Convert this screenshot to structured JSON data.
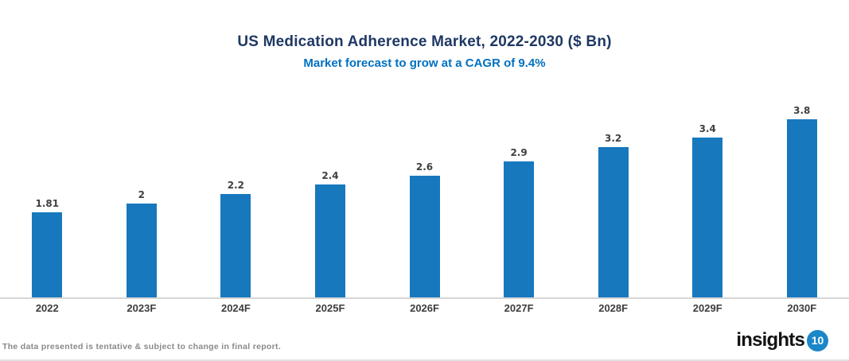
{
  "chart_data": {
    "type": "bar",
    "title": "US Medication Adherence Market, 2022-2030 ($ Bn)",
    "subtitle": "Market forecast to grow at a CAGR of 9.4%",
    "categories": [
      "2022",
      "2023F",
      "2024F",
      "2025F",
      "2026F",
      "2027F",
      "2028F",
      "2029F",
      "2030F"
    ],
    "values": [
      1.81,
      2,
      2.2,
      2.4,
      2.6,
      2.9,
      3.2,
      3.4,
      3.8
    ],
    "value_labels": [
      "1.81",
      "2",
      "2.2",
      "2.4",
      "2.6",
      "2.9",
      "3.2",
      "3.4",
      "3.8"
    ],
    "xlabel": "",
    "ylabel": "",
    "ylim": [
      0,
      4
    ],
    "grid": false,
    "legend": "none",
    "bar_color": "#1778be"
  },
  "colors": {
    "title": "#1f3864",
    "subtitle": "#0070c0",
    "bar": "#1778be",
    "axis_line": "#d6d6d6",
    "value_label": "#404040",
    "category_label": "#3d3d3d",
    "disclaimer": "#898989",
    "logo_text": "#121212",
    "logo_badge": "#1b86c8"
  },
  "footer": {
    "disclaimer": "The data presented is tentative & subject to change in final report.",
    "logo_text": "insights",
    "logo_badge": "10"
  }
}
